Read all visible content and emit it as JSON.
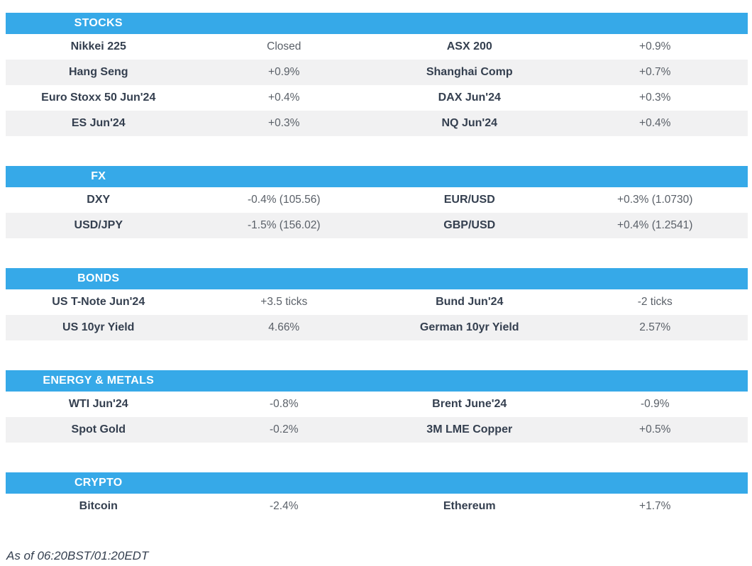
{
  "theme": {
    "accent": "#36a9e8",
    "header_text": "#ffffff",
    "name_text": "#343f4f",
    "value_text": "#5a6068",
    "stripe": "#f1f1f2"
  },
  "sections": [
    {
      "title": "STOCKS",
      "rows": [
        [
          "Nikkei 225",
          "Closed",
          "ASX 200",
          "+0.9%"
        ],
        [
          "Hang Seng",
          "+0.9%",
          "Shanghai Comp",
          "+0.7%"
        ],
        [
          "Euro Stoxx 50 Jun'24",
          "+0.4%",
          "DAX Jun'24",
          "+0.3%"
        ],
        [
          "ES Jun'24",
          "+0.3%",
          "NQ Jun'24",
          "+0.4%"
        ]
      ]
    },
    {
      "title": "FX",
      "rows": [
        [
          "DXY",
          "-0.4% (105.56)",
          "EUR/USD",
          "+0.3% (1.0730)"
        ],
        [
          "USD/JPY",
          "-1.5% (156.02)",
          "GBP/USD",
          "+0.4% (1.2541)"
        ]
      ]
    },
    {
      "title": "BONDS",
      "rows": [
        [
          "US T-Note Jun'24",
          "+3.5 ticks",
          "Bund Jun'24",
          "-2 ticks"
        ],
        [
          "US 10yr Yield",
          "4.66%",
          "German 10yr Yield",
          "2.57%"
        ]
      ]
    },
    {
      "title": "ENERGY & METALS",
      "rows": [
        [
          "WTI Jun'24",
          "-0.8%",
          "Brent June'24",
          "-0.9%"
        ],
        [
          "Spot Gold",
          "-0.2%",
          "3M LME Copper",
          "+0.5%"
        ]
      ]
    },
    {
      "title": "CRYPTO",
      "rows": [
        [
          "Bitcoin",
          "-2.4%",
          "Ethereum",
          "+1.7%"
        ]
      ]
    }
  ],
  "footer": {
    "as_of": "As of 06:20BST/01:20EDT"
  }
}
